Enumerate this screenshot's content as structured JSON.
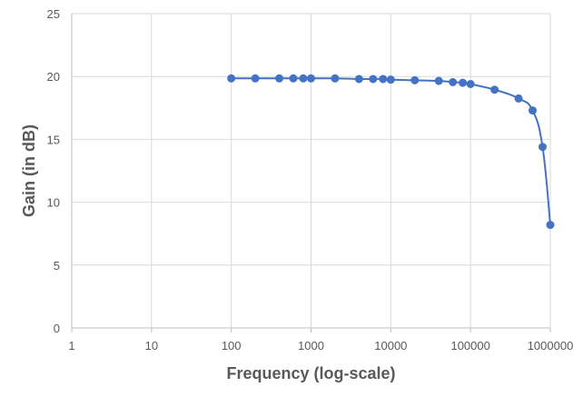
{
  "chart_data": {
    "type": "scatter",
    "title": "",
    "xlabel": "Frequency (log-scale)",
    "ylabel": "Gain (in dB)",
    "x_scale": "log",
    "xlim": [
      1,
      1000000
    ],
    "ylim": [
      0,
      25
    ],
    "x_ticks": [
      "1",
      "10",
      "100",
      "1000",
      "10000",
      "100000",
      "1000000"
    ],
    "y_ticks": [
      "0",
      "5",
      "10",
      "15",
      "20",
      "25"
    ],
    "grid": true,
    "legend": "none",
    "series": [
      {
        "color": "#4472C4",
        "x": [
          100,
          200,
          400,
          600,
          800,
          1000,
          2000,
          4000,
          6000,
          8000,
          10000,
          20000,
          40000,
          60000,
          80000,
          100000,
          200000,
          400000,
          600000,
          800000,
          1000000
        ],
        "y": [
          19.85,
          19.85,
          19.85,
          19.85,
          19.85,
          19.85,
          19.85,
          19.8,
          19.8,
          19.8,
          19.75,
          19.7,
          19.65,
          19.55,
          19.5,
          19.4,
          18.95,
          18.25,
          17.3,
          14.4,
          8.2
        ]
      }
    ]
  }
}
